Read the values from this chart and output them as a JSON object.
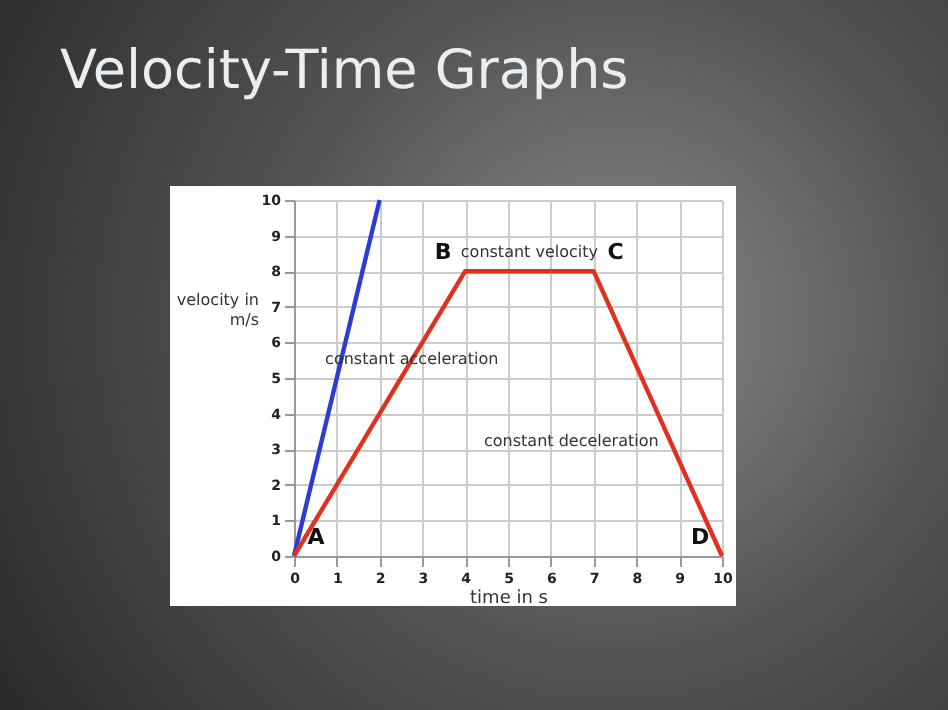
{
  "chart_data": {
    "type": "line",
    "title": "Velocity-Time Graphs",
    "xlabel": "time in s",
    "ylabel": "velocity in m/s",
    "series": [
      {
        "color": "#2b3bd6",
        "x": [
          0,
          2
        ],
        "values": [
          0,
          10
        ]
      },
      {
        "color": "#e0301e",
        "x": [
          0,
          4,
          7,
          10
        ],
        "values": [
          0,
          8,
          8,
          0
        ]
      }
    ],
    "xlim": [
      0,
      10
    ],
    "ylim": [
      0,
      10
    ],
    "xticks": [
      0,
      1,
      2,
      3,
      4,
      5,
      6,
      7,
      8,
      9,
      10
    ],
    "yticks": [
      0,
      1,
      2,
      3,
      4,
      5,
      6,
      7,
      8,
      9,
      10
    ],
    "grid": true,
    "marker": "none",
    "annotations": [
      {
        "text": "A",
        "x": 0,
        "y": 0
      },
      {
        "text": "B",
        "x": 4,
        "y": 8
      },
      {
        "text": "C",
        "x": 7,
        "y": 8
      },
      {
        "text": "D",
        "x": 10,
        "y": 0
      },
      {
        "text": "constant velocity",
        "x": 5.5,
        "y": 8
      },
      {
        "text": "constant acceleration",
        "x": 2.75,
        "y": 5.5
      },
      {
        "text": "constant deceleration",
        "x": 8.8,
        "y": 3.2
      }
    ]
  }
}
